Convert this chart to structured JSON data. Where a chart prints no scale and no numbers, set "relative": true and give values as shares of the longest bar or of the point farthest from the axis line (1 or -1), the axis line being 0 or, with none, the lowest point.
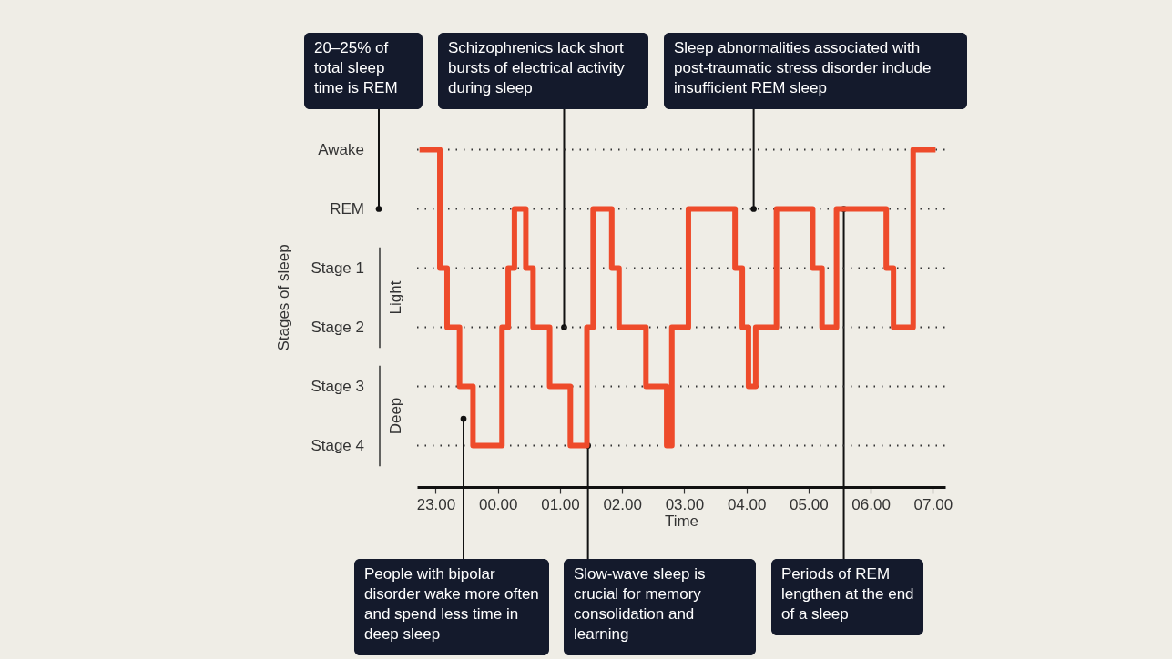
{
  "chart_data": {
    "type": "step",
    "relative": true,
    "xlabel": "Time",
    "x": [
      "2000-01-01T22:47",
      "2000-01-01T23:04",
      "2000-01-01T23:11",
      "2000-01-01T23:23",
      "2000-01-01T23:36",
      "2000-01-02T00:04",
      "2000-01-02T00:10",
      "2000-01-02T00:16",
      "2000-01-02T00:27",
      "2000-01-02T00:34",
      "2000-01-02T00:50",
      "2000-01-02T01:10",
      "2000-01-02T01:26",
      "2000-01-02T01:32",
      "2000-01-02T01:50",
      "2000-01-02T01:57",
      "2000-01-02T02:23",
      "2000-01-02T02:43",
      "2000-01-02T02:48",
      "2000-01-02T03:04",
      "2000-01-02T03:49",
      "2000-01-02T03:56",
      "2000-01-02T04:02",
      "2000-01-02T04:09",
      "2000-01-02T04:29",
      "2000-01-02T05:04",
      "2000-01-02T05:13",
      "2000-01-02T05:27",
      "2000-01-02T06:15",
      "2000-01-02T06:22",
      "2000-01-02T06:41",
      "2000-01-02T07:00"
    ],
    "values": [
      1,
      0.6,
      0.4,
      0.2,
      0,
      0.4,
      0.6,
      0.8,
      0.6,
      0.4,
      0.2,
      0,
      0.4,
      0.8,
      0.6,
      0.4,
      0.2,
      0,
      0.4,
      0.8,
      0.6,
      0.4,
      0.2,
      0.4,
      0.8,
      0.6,
      0.4,
      0.8,
      0.6,
      0.4,
      1,
      1
    ],
    "color": "#ee4b2b",
    "xlim": [
      "2000-01-01T22:42",
      "2000-01-02T07:12"
    ],
    "xticks": [
      {
        "value": "2000-01-01T23:00",
        "label": "23.00"
      },
      {
        "value": "2000-01-02T00:00",
        "label": "00.00"
      },
      {
        "value": "2000-01-02T01:00",
        "label": "01.00"
      },
      {
        "value": "2000-01-02T02:00",
        "label": "02.00"
      },
      {
        "value": "2000-01-02T03:00",
        "label": "03.00"
      },
      {
        "value": "2000-01-02T04:00",
        "label": "04.00"
      },
      {
        "value": "2000-01-02T05:00",
        "label": "05.00"
      },
      {
        "value": "2000-01-02T06:00",
        "label": "06.00"
      },
      {
        "value": "2000-01-02T07:00",
        "label": "07.00"
      }
    ],
    "grid": "y",
    "line_style": "solid",
    "marker": "none",
    "annotations": [
      "20–25% of total sleep time is REM",
      {
        "text": "Schizophrenics lack short bursts of electrical activity during sleep",
        "x": "2000-01-02T01:04",
        "y": 0.4
      },
      {
        "text": "Sleep abnormalities associated with post-traumatic stress disorder include insufficient REM sleep",
        "x": "2000-01-02T04:07",
        "y": 0.8
      },
      "People with bipolar disorder wake more often and spend less time in deep sleep",
      {
        "text": "Slow-wave sleep is crucial for memory consolidation and learning",
        "x": "2000-01-02T01:27",
        "y": 0
      },
      {
        "text": "Periods of REM lengthen at the end of a sleep",
        "x": "2000-01-02T05:34",
        "y": 0.8
      },
      "Light",
      "Deep",
      "Awake",
      "REM",
      "Stage 1",
      "Stage 2",
      "Stage 3",
      "Stage 4",
      "Stages of sleep"
    ]
  }
}
